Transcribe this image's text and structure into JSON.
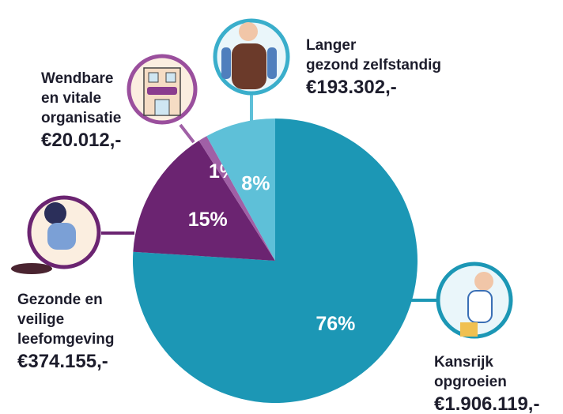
{
  "chart_data": {
    "type": "pie",
    "categories": [
      "Kansrijk\nopgroeien",
      "Gezonde en\nveilige\nleefomgeving",
      "Wendbare\nen vitale\norganisatie",
      "Langer\ngezond zelfstandig"
    ],
    "values": [
      76,
      15,
      1,
      8
    ],
    "value_labels": [
      "76%",
      "15%",
      "1%",
      "8%"
    ],
    "amounts": [
      "€1.906.119,-",
      "€374.155,-",
      "€20.012,-",
      "€193.302,-"
    ],
    "colors": [
      "#1c97b5",
      "#6b2471",
      "#a060a6",
      "#5ec0d8"
    ]
  }
}
